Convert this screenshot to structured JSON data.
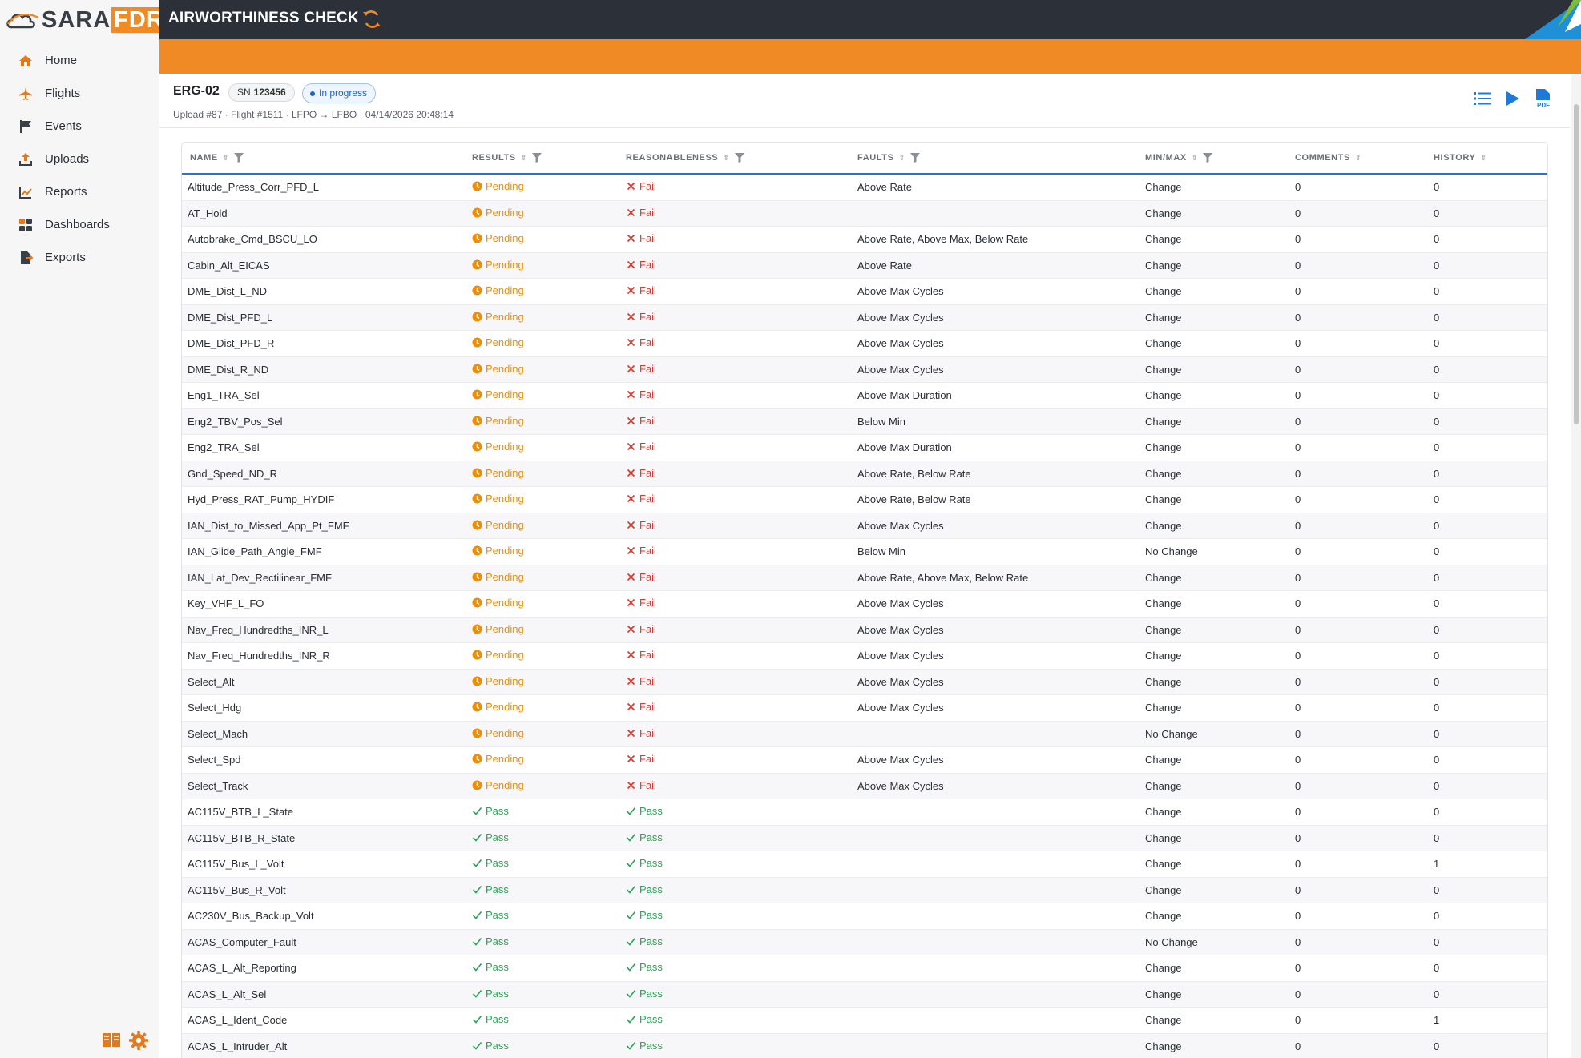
{
  "app": {
    "logo_sara": "SARA",
    "logo_fdr": "FDR",
    "page_title": "AIRWORTHINESS CHECK"
  },
  "sidebar": {
    "items": [
      {
        "label": "Home",
        "icon": "home-icon"
      },
      {
        "label": "Flights",
        "icon": "plane-icon"
      },
      {
        "label": "Events",
        "icon": "flag-icon"
      },
      {
        "label": "Uploads",
        "icon": "upload-icon"
      },
      {
        "label": "Reports",
        "icon": "chart-icon"
      },
      {
        "label": "Dashboards",
        "icon": "grid-icon"
      },
      {
        "label": "Exports",
        "icon": "export-icon"
      }
    ]
  },
  "header": {
    "registration": "ERG-02",
    "sn_label": "SN",
    "sn_value": "123456",
    "status": "In progress",
    "meta": "Upload #87  ·  Flight #1511  ·  LFPO → LFBO  ·  04/14/2026 20:48:14",
    "pdf_label": "PDF"
  },
  "colors": {
    "accent": "#f08a24",
    "topbar": "#2c3038",
    "pending": "#e8900c",
    "pass": "#2aa356",
    "fail": "#e0352b",
    "status_blue": "#1e64c8"
  },
  "table": {
    "columns": [
      "NAME",
      "RESULTS",
      "REASONABLENESS",
      "FAULTS",
      "MIN/MAX",
      "COMMENTS",
      "HISTORY"
    ],
    "rows": [
      [
        "Altitude_Press_Corr_PFD_L",
        "Pending",
        "Fail",
        "Above Rate",
        "Change",
        "0",
        "0"
      ],
      [
        "AT_Hold",
        "Pending",
        "Fail",
        "",
        "Change",
        "0",
        "0"
      ],
      [
        "Autobrake_Cmd_BSCU_LO",
        "Pending",
        "Fail",
        "Above Rate, Above Max, Below Rate",
        "Change",
        "0",
        "0"
      ],
      [
        "Cabin_Alt_EICAS",
        "Pending",
        "Fail",
        "Above Rate",
        "Change",
        "0",
        "0"
      ],
      [
        "DME_Dist_L_ND",
        "Pending",
        "Fail",
        "Above Max Cycles",
        "Change",
        "0",
        "0"
      ],
      [
        "DME_Dist_PFD_L",
        "Pending",
        "Fail",
        "Above Max Cycles",
        "Change",
        "0",
        "0"
      ],
      [
        "DME_Dist_PFD_R",
        "Pending",
        "Fail",
        "Above Max Cycles",
        "Change",
        "0",
        "0"
      ],
      [
        "DME_Dist_R_ND",
        "Pending",
        "Fail",
        "Above Max Cycles",
        "Change",
        "0",
        "0"
      ],
      [
        "Eng1_TRA_Sel",
        "Pending",
        "Fail",
        "Above Max Duration",
        "Change",
        "0",
        "0"
      ],
      [
        "Eng2_TBV_Pos_Sel",
        "Pending",
        "Fail",
        "Below Min",
        "Change",
        "0",
        "0"
      ],
      [
        "Eng2_TRA_Sel",
        "Pending",
        "Fail",
        "Above Max Duration",
        "Change",
        "0",
        "0"
      ],
      [
        "Gnd_Speed_ND_R",
        "Pending",
        "Fail",
        "Above Rate, Below Rate",
        "Change",
        "0",
        "0"
      ],
      [
        "Hyd_Press_RAT_Pump_HYDIF",
        "Pending",
        "Fail",
        "Above Rate, Below Rate",
        "Change",
        "0",
        "0"
      ],
      [
        "IAN_Dist_to_Missed_App_Pt_FMF",
        "Pending",
        "Fail",
        "Above Max Cycles",
        "Change",
        "0",
        "0"
      ],
      [
        "IAN_Glide_Path_Angle_FMF",
        "Pending",
        "Fail",
        "Below Min",
        "No Change",
        "0",
        "0"
      ],
      [
        "IAN_Lat_Dev_Rectilinear_FMF",
        "Pending",
        "Fail",
        "Above Rate, Above Max, Below Rate",
        "Change",
        "0",
        "0"
      ],
      [
        "Key_VHF_L_FO",
        "Pending",
        "Fail",
        "Above Max Cycles",
        "Change",
        "0",
        "0"
      ],
      [
        "Nav_Freq_Hundredths_INR_L",
        "Pending",
        "Fail",
        "Above Max Cycles",
        "Change",
        "0",
        "0"
      ],
      [
        "Nav_Freq_Hundredths_INR_R",
        "Pending",
        "Fail",
        "Above Max Cycles",
        "Change",
        "0",
        "0"
      ],
      [
        "Select_Alt",
        "Pending",
        "Fail",
        "Above Max Cycles",
        "Change",
        "0",
        "0"
      ],
      [
        "Select_Hdg",
        "Pending",
        "Fail",
        "Above Max Cycles",
        "Change",
        "0",
        "0"
      ],
      [
        "Select_Mach",
        "Pending",
        "Fail",
        "",
        "No Change",
        "0",
        "0"
      ],
      [
        "Select_Spd",
        "Pending",
        "Fail",
        "Above Max Cycles",
        "Change",
        "0",
        "0"
      ],
      [
        "Select_Track",
        "Pending",
        "Fail",
        "Above Max Cycles",
        "Change",
        "0",
        "0"
      ],
      [
        "AC115V_BTB_L_State",
        "Pass",
        "Pass",
        "",
        "Change",
        "0",
        "0"
      ],
      [
        "AC115V_BTB_R_State",
        "Pass",
        "Pass",
        "",
        "Change",
        "0",
        "0"
      ],
      [
        "AC115V_Bus_L_Volt",
        "Pass",
        "Pass",
        "",
        "Change",
        "0",
        "1"
      ],
      [
        "AC115V_Bus_R_Volt",
        "Pass",
        "Pass",
        "",
        "Change",
        "0",
        "0"
      ],
      [
        "AC230V_Bus_Backup_Volt",
        "Pass",
        "Pass",
        "",
        "Change",
        "0",
        "0"
      ],
      [
        "ACAS_Computer_Fault",
        "Pass",
        "Pass",
        "",
        "No Change",
        "0",
        "0"
      ],
      [
        "ACAS_L_Alt_Reporting",
        "Pass",
        "Pass",
        "",
        "Change",
        "0",
        "0"
      ],
      [
        "ACAS_L_Alt_Sel",
        "Pass",
        "Pass",
        "",
        "Change",
        "0",
        "0"
      ],
      [
        "ACAS_L_Ident_Code",
        "Pass",
        "Pass",
        "",
        "Change",
        "0",
        "1"
      ],
      [
        "ACAS_L_Intruder_Alt",
        "Pass",
        "Pass",
        "",
        "Change",
        "0",
        "0"
      ]
    ]
  }
}
